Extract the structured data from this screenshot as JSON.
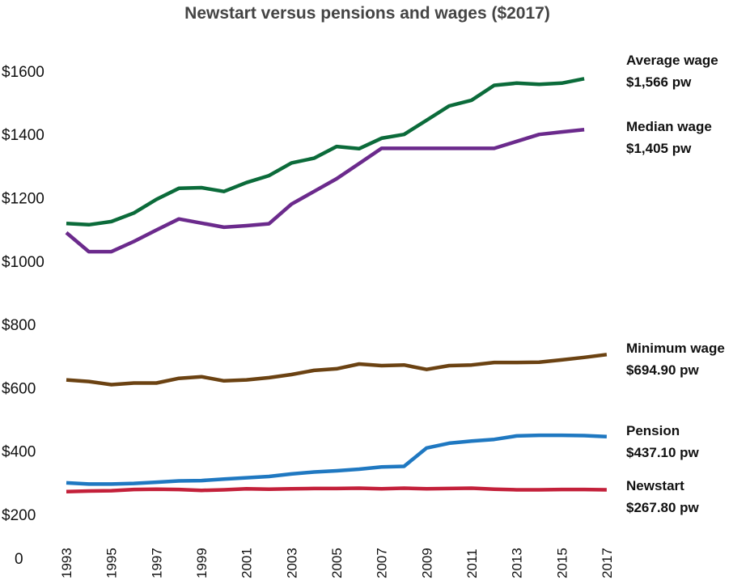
{
  "chart_data": {
    "type": "line",
    "title": "Newstart versus pensions and wages ($2017)",
    "xlabel": "",
    "ylabel": "",
    "ylim": [
      200,
      1600
    ],
    "grid": false,
    "y_ticks": [
      "$1600",
      "$1400",
      "$1200",
      "$1000",
      "$800",
      "$600",
      "$400",
      "$200",
      "0"
    ],
    "y_tick_values": [
      1600,
      1400,
      1200,
      1000,
      800,
      600,
      400,
      200
    ],
    "x_ticks": [
      "1993",
      "1995",
      "1997",
      "1999",
      "2001",
      "2003",
      "2005",
      "2007",
      "2009",
      "2011",
      "2013",
      "2015",
      "2017"
    ],
    "x": [
      1993,
      1994,
      1995,
      1996,
      1997,
      1998,
      1999,
      2000,
      2001,
      2002,
      2003,
      2004,
      2005,
      2006,
      2007,
      2008,
      2009,
      2010,
      2011,
      2012,
      2013,
      2014,
      2015,
      2016,
      2017
    ],
    "series": [
      {
        "name": "Average wage",
        "label": "$1,566 pw",
        "color": "#0b6b3a",
        "values": [
          1119,
          1115,
          1125,
          1152,
          1195,
          1230,
          1232,
          1220,
          1248,
          1270,
          1310,
          1325,
          1362,
          1355,
          1388,
          1400,
          1445,
          1490,
          1508,
          1555,
          1562,
          1558,
          1562,
          1576,
          null
        ]
      },
      {
        "name": "Median wage",
        "label": "$1,405 pw",
        "color": "#6b2a8c",
        "values": [
          1090,
          1030,
          1030,
          1062,
          1098,
          1133,
          1120,
          1107,
          1112,
          1118,
          1180,
          1220,
          1260,
          1308,
          1356,
          1356,
          1356,
          1356,
          1356,
          1356,
          1378,
          1400,
          1408,
          1415,
          null
        ]
      },
      {
        "name": "Minimum wage",
        "label": "$694.90 pw",
        "color": "#6b4212",
        "values": [
          625,
          620,
          610,
          615,
          615,
          630,
          635,
          622,
          625,
          632,
          642,
          655,
          660,
          675,
          670,
          672,
          658,
          670,
          672,
          680,
          680,
          681,
          688,
          696,
          705
        ]
      },
      {
        "name": "Pension",
        "label": "$437.10 pw",
        "color": "#1f78c1",
        "values": [
          300,
          296,
          296,
          298,
          302,
          306,
          307,
          312,
          316,
          320,
          328,
          334,
          338,
          343,
          350,
          352,
          410,
          425,
          432,
          437,
          448,
          450,
          450,
          449,
          446
        ]
      },
      {
        "name": "Newstart",
        "label": "$267.80 pw",
        "color": "#c3203a",
        "values": [
          272,
          274,
          275,
          279,
          280,
          279,
          276,
          278,
          281,
          280,
          281,
          282,
          282,
          283,
          281,
          283,
          281,
          282,
          283,
          280,
          278,
          278,
          279,
          279,
          278
        ]
      }
    ]
  }
}
